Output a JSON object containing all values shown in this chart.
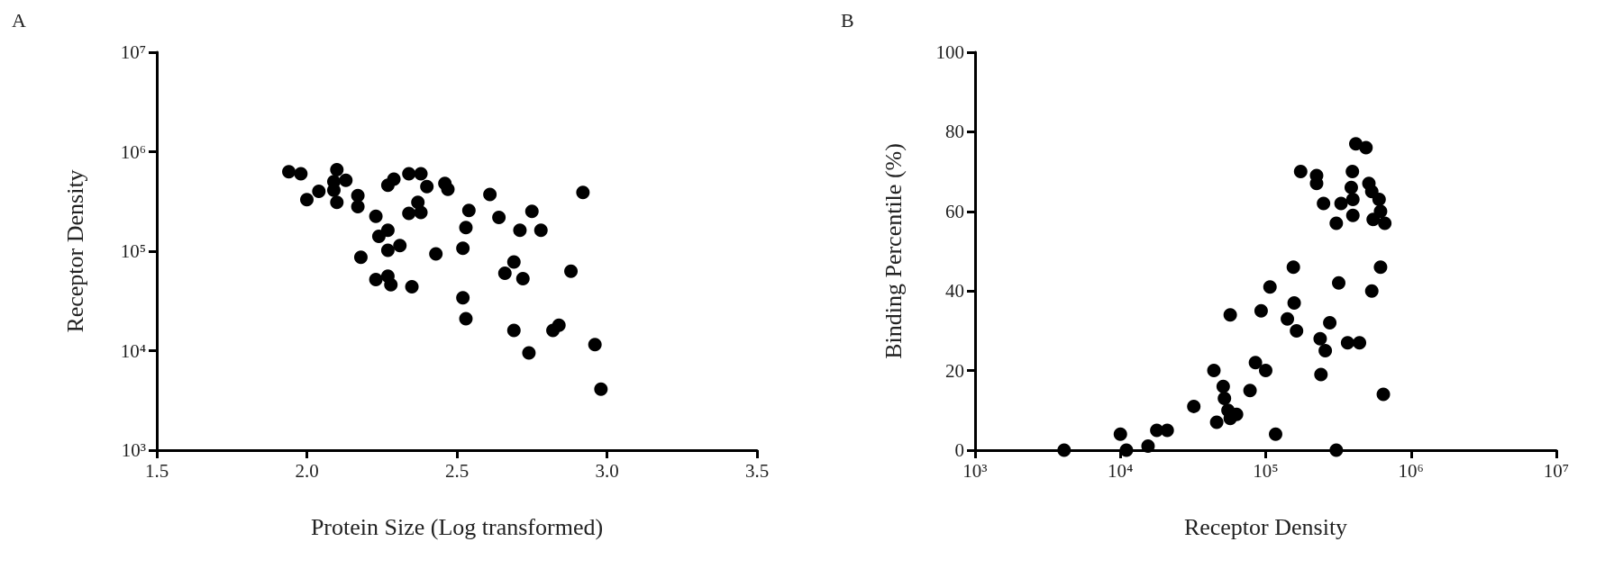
{
  "chart_data": [
    {
      "type": "scatter",
      "title": "A",
      "xlabel": "Protein Size (Log transformed)",
      "ylabel": "Receptor Density",
      "log": "y",
      "marker": "circle",
      "color": "#000000",
      "xlim": [
        1.5,
        3.5
      ],
      "xticks": [
        1.5,
        {
          "value": 2,
          "label": "2.0"
        },
        2.5,
        {
          "value": 3,
          "label": "3.0"
        },
        3.5
      ],
      "ylim": [
        1000,
        10000000
      ],
      "yticks": [
        {
          "value": 1000,
          "label": "10³"
        },
        {
          "value": 10000,
          "label": "10⁴"
        },
        {
          "value": 100000,
          "label": "10⁵"
        },
        {
          "value": 1000000,
          "label": "10⁶"
        },
        {
          "value": 10000000,
          "label": "10⁷"
        }
      ],
      "x": [
        1.94,
        1.98,
        2.0,
        2.04,
        2.1,
        2.09,
        2.13,
        2.1,
        2.09,
        2.17,
        2.17,
        2.23,
        2.18,
        2.24,
        2.27,
        2.27,
        2.31,
        2.23,
        2.27,
        2.28,
        2.35,
        2.27,
        2.29,
        2.34,
        2.38,
        2.4,
        2.37,
        2.34,
        2.38,
        2.43,
        2.46,
        2.47,
        2.52,
        2.53,
        2.54,
        2.52,
        2.53,
        2.61,
        2.64,
        2.66,
        2.69,
        2.72,
        2.71,
        2.75,
        2.78,
        2.69,
        2.74,
        2.82,
        2.84,
        2.88,
        2.92,
        2.96,
        2.98
      ],
      "values": [
        630000,
        600000,
        330000,
        400000,
        660000,
        500000,
        515000,
        310000,
        410000,
        363000,
        280000,
        224000,
        87000,
        141000,
        162000,
        102000,
        114000,
        52000,
        56000,
        46000,
        44000,
        460000,
        530000,
        600000,
        600000,
        445000,
        310000,
        240000,
        245000,
        94000,
        480000,
        420000,
        107000,
        173000,
        257000,
        34000,
        21000,
        371000,
        219000,
        60000,
        78000,
        53000,
        162000,
        251000,
        162000,
        16000,
        9500,
        16000,
        18000,
        63000,
        390000,
        11500,
        4100
      ]
    },
    {
      "type": "scatter",
      "title": "B",
      "xlabel": "Receptor Density",
      "ylabel": "Binding Percentile (%)",
      "log": "x",
      "marker": "circle",
      "color": "#000000",
      "xlim": [
        1000,
        10000000
      ],
      "xticks": [
        {
          "value": 1000,
          "label": "10³"
        },
        {
          "value": 10000,
          "label": "10⁴"
        },
        {
          "value": 100000,
          "label": "10⁵"
        },
        {
          "value": 1000000,
          "label": "10⁶"
        },
        {
          "value": 10000000,
          "label": "10⁷"
        }
      ],
      "ylim": [
        0,
        100
      ],
      "yticks": [
        0,
        20,
        40,
        60,
        80,
        100
      ],
      "x": [
        4100,
        10000,
        11000,
        15500,
        17800,
        21000,
        32000,
        44000,
        46000,
        51000,
        52000,
        55000,
        57000,
        63000,
        57000,
        78000,
        85000,
        100000,
        93000,
        107000,
        117000,
        141000,
        155000,
        157000,
        163000,
        174000,
        224000,
        224000,
        250000,
        237000,
        257000,
        240000,
        276000,
        306000,
        306000,
        318000,
        330000,
        366000,
        442000,
        395000,
        388000,
        398000,
        398000,
        417000,
        490000,
        513000,
        537000,
        549000,
        537000,
        603000,
        617000,
        660000,
        617000,
        645000
      ],
      "values": [
        0,
        4,
        0,
        1,
        5,
        5,
        11,
        20,
        7,
        16,
        13,
        10,
        8,
        9,
        34,
        15,
        22,
        20,
        35,
        41,
        4,
        33,
        46,
        37,
        30,
        70,
        69,
        67,
        62,
        28,
        25,
        19,
        32,
        57,
        0,
        42,
        62,
        27,
        27,
        70,
        66,
        59,
        63,
        77,
        76,
        67,
        65,
        58,
        40,
        63,
        60,
        57,
        46,
        14
      ]
    }
  ]
}
